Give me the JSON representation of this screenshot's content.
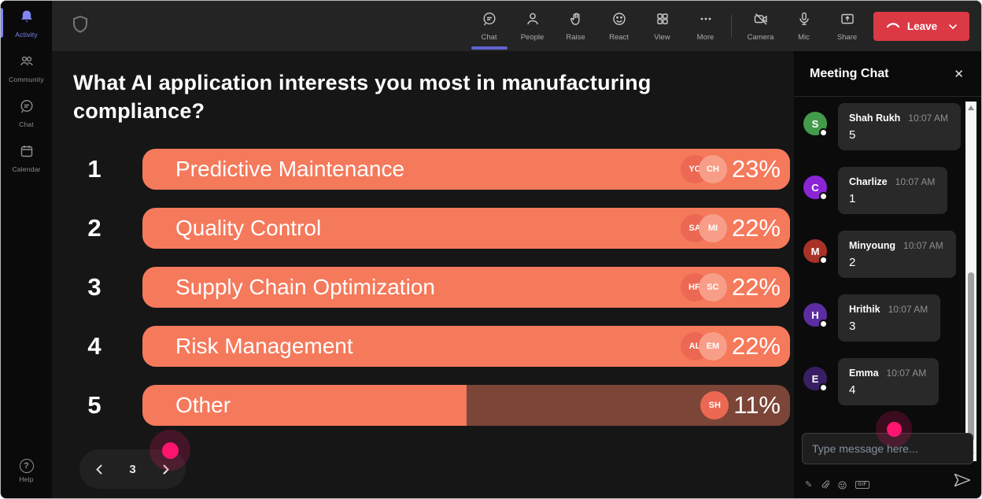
{
  "colors": {
    "bar_fill": "#F5795B",
    "bar_track": "#7B4538",
    "voter_dark": "#EC6852",
    "voter_light": "#F89E88",
    "leave_red": "#DB3944",
    "accent_purple": "#5F63D1",
    "sidebar_active": "#8186F3",
    "click_pink": "#FF1470"
  },
  "sidebar": {
    "items": [
      {
        "label": "Activity",
        "icon": "bell-icon",
        "active": true
      },
      {
        "label": "Community",
        "icon": "community-icon",
        "active": false
      },
      {
        "label": "Chat",
        "icon": "chat-bubble-icon",
        "active": false
      },
      {
        "label": "Calendar",
        "icon": "calendar-icon",
        "active": false
      }
    ],
    "help_label": "Help"
  },
  "topbar": {
    "logo_icon": "shield-icon",
    "center_items": [
      {
        "label": "Chat",
        "icon": "chat-bubble-icon",
        "active": true
      },
      {
        "label": "People",
        "icon": "person-icon",
        "active": false
      },
      {
        "label": "Raise",
        "icon": "raise-hand-icon",
        "active": false
      },
      {
        "label": "React",
        "icon": "smiley-icon",
        "active": false
      },
      {
        "label": "View",
        "icon": "grid-icon",
        "active": false
      },
      {
        "label": "More",
        "icon": "ellipsis-icon",
        "active": false
      }
    ],
    "device_items": [
      {
        "label": "Camera",
        "icon": "camera-off-icon"
      },
      {
        "label": "Mic",
        "icon": "microphone-icon"
      },
      {
        "label": "Share",
        "icon": "share-screen-icon"
      }
    ],
    "leave_label": "Leave"
  },
  "poll": {
    "question": "What AI application interests you most in manufacturing compliance?",
    "options": [
      {
        "rank": "1",
        "label": "Predictive Maintenance",
        "pct_label": "23%",
        "pct_value": 23,
        "fill_pct": 100,
        "voters": [
          "YC",
          "CH"
        ]
      },
      {
        "rank": "2",
        "label": "Quality Control",
        "pct_label": "22%",
        "pct_value": 22,
        "fill_pct": 100,
        "voters": [
          "SA",
          "MI"
        ]
      },
      {
        "rank": "3",
        "label": "Supply Chain Optimization",
        "pct_label": "22%",
        "pct_value": 22,
        "fill_pct": 100,
        "voters": [
          "HR",
          "SC"
        ]
      },
      {
        "rank": "4",
        "label": "Risk Management",
        "pct_label": "22%",
        "pct_value": 22,
        "fill_pct": 100,
        "voters": [
          "AL",
          "EM"
        ]
      },
      {
        "rank": "5",
        "label": "Other",
        "pct_label": "11%",
        "pct_value": 11,
        "fill_pct": 50,
        "voters": [
          "SH"
        ]
      }
    ],
    "pagination": {
      "page": "3",
      "prev_icon": "chevron-left-icon",
      "next_icon": "chevron-right-icon"
    }
  },
  "chat": {
    "title": "Meeting Chat",
    "close_glyph": "✕",
    "messages": [
      {
        "initial": "S",
        "name": "Shah Rukh",
        "time": "10:07 AM",
        "text": "5",
        "color": "#429A4A"
      },
      {
        "initial": "C",
        "name": "Charlize",
        "time": "10:07 AM",
        "text": "1",
        "color": "#8A25D6"
      },
      {
        "initial": "M",
        "name": "Minyoung",
        "time": "10:07 AM",
        "text": "2",
        "color": "#A93226"
      },
      {
        "initial": "H",
        "name": "Hrithik",
        "time": "10:07 AM",
        "text": "3",
        "color": "#5C2DA0"
      },
      {
        "initial": "E",
        "name": "Emma",
        "time": "10:07 AM",
        "text": "4",
        "color": "#381F63"
      }
    ],
    "input_placeholder": "Type message here...",
    "tools": {
      "format_glyph": "✎",
      "gif_label": "GIF"
    }
  }
}
